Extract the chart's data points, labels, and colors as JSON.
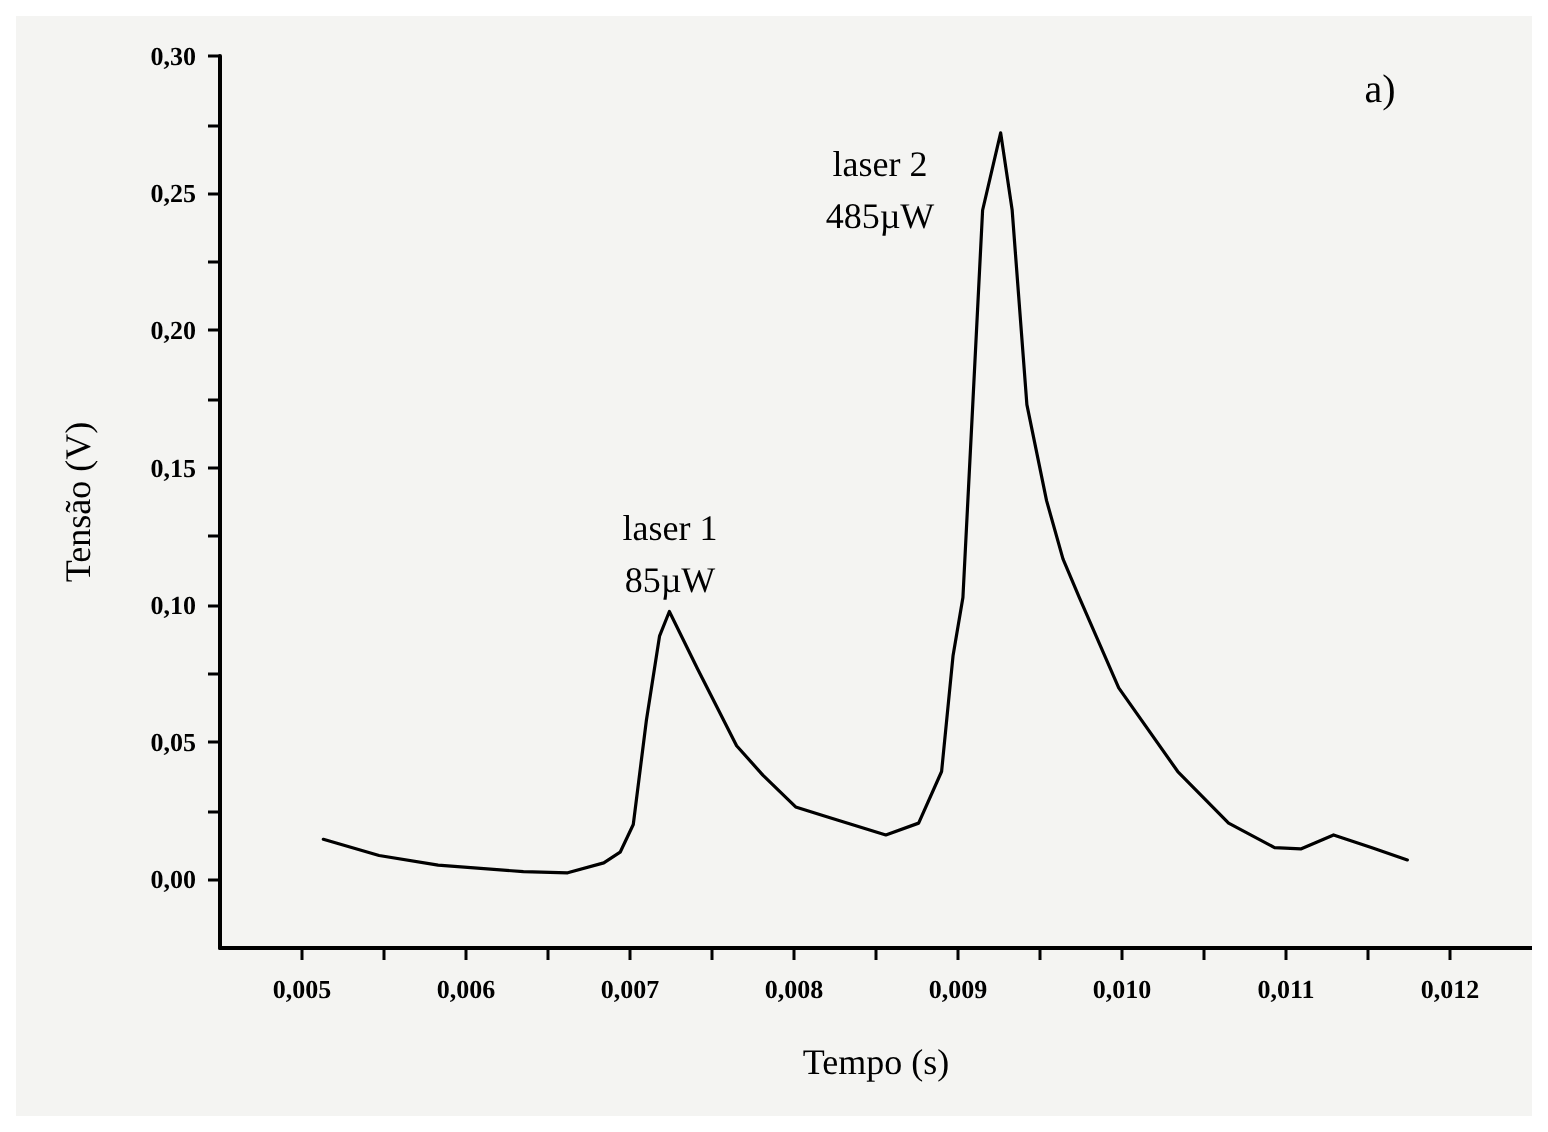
{
  "chart_data": {
    "type": "line",
    "xlabel": "Tempo (s)",
    "ylabel": "Tensão (V)",
    "x": [
      0.00513,
      0.00547,
      0.00583,
      0.00635,
      0.00662,
      0.00684,
      0.00694,
      0.00702,
      0.0071,
      0.00718,
      0.00724,
      0.00741,
      0.00765,
      0.00781,
      0.00801,
      0.0082,
      0.00856,
      0.00876,
      0.0089,
      0.00897,
      0.00903,
      0.00909,
      0.00915,
      0.00926,
      0.00933,
      0.00942,
      0.00954,
      0.00964,
      0.00974,
      0.00998,
      0.01034,
      0.01065,
      0.01093,
      0.01109,
      0.01129,
      0.01152,
      0.01174
    ],
    "series": [
      {
        "color": "#000000",
        "values": [
          0.0146,
          0.0087,
          0.0052,
          0.0028,
          0.0024,
          0.006,
          0.0099,
          0.02,
          0.058,
          0.0886,
          0.0976,
          0.0769,
          0.0487,
          0.038,
          0.0264,
          0.0228,
          0.0162,
          0.0205,
          0.0393,
          0.0816,
          0.1027,
          0.173,
          0.2438,
          0.272,
          0.244,
          0.173,
          0.138,
          0.1168,
          0.1027,
          0.0698,
          0.0393,
          0.0205,
          0.0116,
          0.0111,
          0.0162,
          0.0116,
          0.0071
        ]
      }
    ],
    "xlim": [
      0.0045,
      0.0125
    ],
    "ylim": [
      -0.025,
      0.3
    ],
    "xticks": [
      {
        "value": 0.005,
        "label": "0,005"
      },
      {
        "value": 0.0055,
        "label": null
      },
      {
        "value": 0.006,
        "label": "0,006"
      },
      {
        "value": 0.0065,
        "label": null
      },
      {
        "value": 0.007,
        "label": "0,007"
      },
      {
        "value": 0.0075,
        "label": null
      },
      {
        "value": 0.008,
        "label": "0,008"
      },
      {
        "value": 0.0085,
        "label": null
      },
      {
        "value": 0.009,
        "label": "0,009"
      },
      {
        "value": 0.0095,
        "label": null
      },
      {
        "value": 0.01,
        "label": "0,010"
      },
      {
        "value": 0.0105,
        "label": null
      },
      {
        "value": 0.011,
        "label": "0,011"
      },
      {
        "value": 0.0115,
        "label": null
      },
      {
        "value": 0.012,
        "label": "0,012"
      }
    ],
    "yticks": [
      {
        "value": 0,
        "label": "0,00"
      },
      {
        "value": 0.025,
        "label": null
      },
      {
        "value": 0.05,
        "label": "0,05"
      },
      {
        "value": 0.075,
        "label": null
      },
      {
        "value": 0.1,
        "label": "0,10"
      },
      {
        "value": 0.125,
        "label": null
      },
      {
        "value": 0.15,
        "label": "0,15"
      },
      {
        "value": 0.175,
        "label": null
      },
      {
        "value": 0.2,
        "label": "0,20"
      },
      {
        "value": 0.225,
        "label": null
      },
      {
        "value": 0.25,
        "label": "0,25"
      },
      {
        "value": 0.275,
        "label": null
      },
      {
        "value": 0.3,
        "label": "0,30"
      }
    ],
    "annotations": [
      "laser 1\n85µW",
      "laser 2\n485µW",
      "a)"
    ],
    "grid": false,
    "marker": "none",
    "line_style": "solid"
  }
}
